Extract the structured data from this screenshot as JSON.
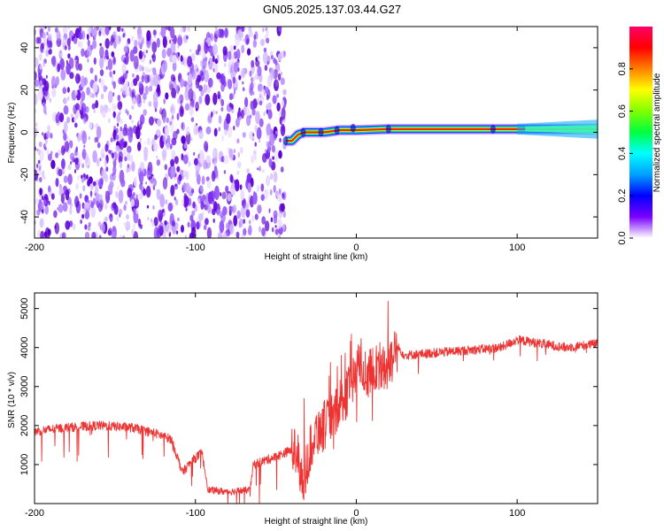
{
  "title": "GN05.2025.137.03.44.G27",
  "chart_data": [
    {
      "type": "heatmap",
      "name": "spectrogram",
      "xlabel": "Height of straight line (km)",
      "ylabel": "Frequency (Hz)",
      "xlim": [
        -200,
        150
      ],
      "ylim": [
        -50,
        50
      ],
      "xticks": [
        -200,
        -100,
        0,
        100
      ],
      "yticks": [
        -40,
        -20,
        0,
        20,
        40
      ],
      "noise_region": {
        "x": [
          -200,
          -44
        ],
        "y": [
          -50,
          50
        ]
      },
      "ridge": [
        {
          "x": -44,
          "y": -4
        },
        {
          "x": -40,
          "y": -4
        },
        {
          "x": -36,
          "y": -1
        },
        {
          "x": -32,
          "y": 0
        },
        {
          "x": -20,
          "y": 0
        },
        {
          "x": -10,
          "y": 1
        },
        {
          "x": 0,
          "y": 1
        },
        {
          "x": 20,
          "y": 1.5
        },
        {
          "x": 60,
          "y": 1.5
        },
        {
          "x": 100,
          "y": 1.5
        },
        {
          "x": 150,
          "y": 1.5
        }
      ],
      "colorbar": {
        "label": "Normalized spectral amplitude",
        "range": [
          0,
          1
        ],
        "ticks": [
          "0.0",
          "0.2",
          "0.4",
          "0.6",
          "0.8"
        ],
        "colors": [
          "#ffffff",
          "#7a00ff",
          "#0000ff",
          "#00a0ff",
          "#00ffff",
          "#00ff40",
          "#80ff00",
          "#ffff00",
          "#ff8000",
          "#ff0000",
          "#ff0066"
        ]
      }
    },
    {
      "type": "line",
      "name": "snr",
      "xlabel": "Height of straight line (km)",
      "ylabel": "SNR (10 * v/v)",
      "xlim": [
        -200,
        150
      ],
      "ylim": [
        0,
        5400
      ],
      "xticks": [
        -200,
        -100,
        0,
        100
      ],
      "yticks": [
        1000,
        2000,
        3000,
        4000,
        5000
      ],
      "color": "#ee3333",
      "envelope": [
        {
          "x": -200,
          "y": 1850
        },
        {
          "x": -180,
          "y": 1950
        },
        {
          "x": -160,
          "y": 2000
        },
        {
          "x": -140,
          "y": 1950
        },
        {
          "x": -125,
          "y": 1800
        },
        {
          "x": -115,
          "y": 1650
        },
        {
          "x": -108,
          "y": 800
        },
        {
          "x": -102,
          "y": 1100
        },
        {
          "x": -96,
          "y": 1300
        },
        {
          "x": -92,
          "y": 350
        },
        {
          "x": -80,
          "y": 300
        },
        {
          "x": -66,
          "y": 350
        },
        {
          "x": -64,
          "y": 1000
        },
        {
          "x": -50,
          "y": 1200
        },
        {
          "x": -36,
          "y": 1450
        },
        {
          "x": -34,
          "y": 500
        },
        {
          "x": -26,
          "y": 1800
        },
        {
          "x": -14,
          "y": 2200
        },
        {
          "x": -4,
          "y": 3000
        },
        {
          "x": 3,
          "y": 3600
        },
        {
          "x": 8,
          "y": 3300
        },
        {
          "x": 13,
          "y": 3600
        },
        {
          "x": 18,
          "y": 3400
        },
        {
          "x": 26,
          "y": 4000
        },
        {
          "x": 30,
          "y": 3800
        },
        {
          "x": 60,
          "y": 3900
        },
        {
          "x": 90,
          "y": 4000
        },
        {
          "x": 100,
          "y": 4200
        },
        {
          "x": 130,
          "y": 4000
        },
        {
          "x": 150,
          "y": 4100
        }
      ]
    }
  ]
}
